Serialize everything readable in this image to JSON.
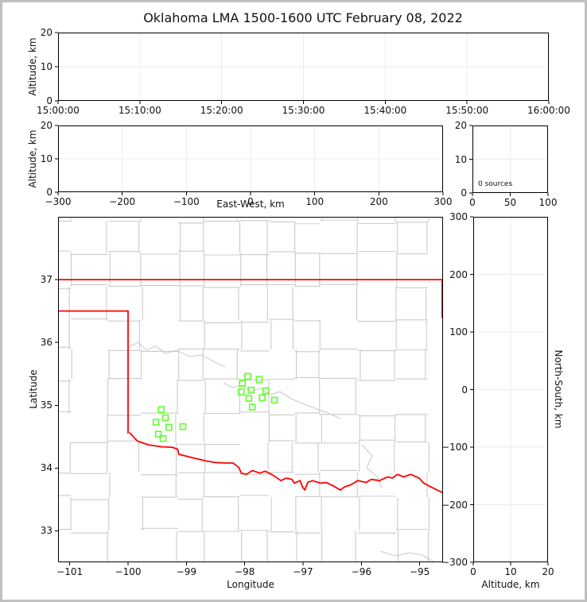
{
  "figure": {
    "title": "Oklahoma LMA 1500-1600 UTC February 08, 2022",
    "background": "#ffffff",
    "border_color": "#c0c0c0"
  },
  "colors": {
    "spine": "#000000",
    "grid": "#ececec",
    "county_line": "#cbcbcb",
    "state_border": "#ff0000",
    "station_marker": "#66ff33",
    "text": "#111111"
  },
  "panels": {
    "time_height": {
      "ylabel": "Altitude, km",
      "xtick_labels": [
        "15:00:00",
        "15:10:00",
        "15:20:00",
        "15:30:00",
        "15:40:00",
        "15:50:00",
        "16:00:00"
      ],
      "ytick_labels": [
        "0",
        "10",
        "20"
      ]
    },
    "eastwest_height": {
      "xlabel": "East-West, km",
      "ylabel": "Altitude, km",
      "xtick_labels": [
        "−300",
        "−200",
        "−100",
        "0",
        "100",
        "200",
        "300"
      ],
      "ytick_labels": [
        "0",
        "10",
        "20"
      ]
    },
    "source_histogram": {
      "annotation": "0 sources",
      "xtick_labels": [
        "0",
        "50",
        "100"
      ],
      "ytick_labels": [
        "0",
        "10",
        "20"
      ]
    },
    "plan_view": {
      "xlabel": "Longitude",
      "ylabel": "Latitude",
      "xtick_labels": [
        "−101",
        "−100",
        "−99",
        "−98",
        "−97",
        "−96",
        "−95"
      ],
      "ytick_labels": [
        "33",
        "34",
        "35",
        "36",
        "37"
      ]
    },
    "northsouth_height": {
      "xlabel": "Altitude, km",
      "ylabel": "North-South, km",
      "xtick_labels": [
        "0",
        "10",
        "20"
      ],
      "ytick_labels": [
        "−300",
        "−200",
        "−100",
        "0",
        "100",
        "200",
        "300"
      ]
    }
  },
  "chart_data": [
    {
      "id": "time_height",
      "type": "scatter",
      "ylabel": "Altitude, km",
      "xlim": [
        "15:00:00",
        "16:00:00"
      ],
      "ylim": [
        0,
        20
      ],
      "xticks": [
        "15:00:00",
        "15:10:00",
        "15:20:00",
        "15:30:00",
        "15:40:00",
        "15:50:00",
        "16:00:00"
      ],
      "yticks": [
        0,
        10,
        20
      ],
      "grid": true,
      "points": []
    },
    {
      "id": "eastwest_height",
      "type": "scatter",
      "xlabel": "East-West, km",
      "ylabel": "Altitude, km",
      "xlim": [
        -300,
        300
      ],
      "ylim": [
        0,
        20
      ],
      "xticks": [
        -300,
        -200,
        -100,
        0,
        100,
        200,
        300
      ],
      "yticks": [
        0,
        10,
        20
      ],
      "grid": true,
      "points": []
    },
    {
      "id": "source_histogram",
      "type": "line",
      "annotation": "0 sources",
      "xlim": [
        0,
        100
      ],
      "ylim": [
        0,
        20
      ],
      "xticks": [
        0,
        50,
        100
      ],
      "yticks": [
        0,
        10,
        20
      ],
      "grid": true,
      "points": []
    },
    {
      "id": "plan_view",
      "type": "scatter",
      "xlabel": "Longitude",
      "ylabel": "Latitude",
      "xlim": [
        -101.2,
        -94.6
      ],
      "ylim": [
        32.5,
        38.0
      ],
      "xticks": [
        -101,
        -100,
        -99,
        -98,
        -97,
        -96,
        -95
      ],
      "yticks": [
        33,
        34,
        35,
        36,
        37
      ],
      "grid": false,
      "marker_shape": "open-square",
      "marker_color": "#66ff33",
      "points": [
        [
          -97.95,
          35.46
        ],
        [
          -97.75,
          35.41
        ],
        [
          -98.04,
          35.35
        ],
        [
          -97.89,
          35.24
        ],
        [
          -98.06,
          35.21
        ],
        [
          -97.64,
          35.23
        ],
        [
          -97.7,
          35.12
        ],
        [
          -97.93,
          35.11
        ],
        [
          -97.49,
          35.08
        ],
        [
          -97.87,
          34.97
        ],
        [
          -99.43,
          34.93
        ],
        [
          -99.36,
          34.8
        ],
        [
          -99.52,
          34.73
        ],
        [
          -99.3,
          34.65
        ],
        [
          -99.06,
          34.66
        ],
        [
          -99.48,
          34.54
        ],
        [
          -99.4,
          34.47
        ]
      ]
    },
    {
      "id": "northsouth_height",
      "type": "scatter",
      "xlabel": "Altitude, km",
      "ylabel": "North-South, km",
      "xlim": [
        0,
        20
      ],
      "ylim": [
        -300,
        300
      ],
      "xticks": [
        0,
        10,
        20
      ],
      "yticks": [
        -300,
        -200,
        -100,
        0,
        100,
        200,
        300
      ],
      "grid": true,
      "points": []
    }
  ],
  "map_overlays": {
    "state_border": {
      "north": [
        [
          -101.2,
          37.0
        ],
        [
          -94.6,
          37.0
        ]
      ],
      "panhandle_south": [
        [
          -101.2,
          36.5
        ],
        [
          -100.0,
          36.5
        ]
      ],
      "west_meridian": [
        [
          -100.0,
          36.5
        ],
        [
          -100.0,
          34.56
        ]
      ],
      "east_border": [
        [
          -94.615,
          37.0
        ],
        [
          -94.615,
          36.4
        ]
      ],
      "red_river": [
        [
          -99.97,
          34.56
        ],
        [
          -99.84,
          34.43
        ],
        [
          -99.65,
          34.37
        ],
        [
          -99.43,
          34.34
        ],
        [
          -99.24,
          34.33
        ],
        [
          -99.15,
          34.3
        ],
        [
          -99.13,
          34.22
        ],
        [
          -98.96,
          34.18
        ],
        [
          -98.83,
          34.15
        ],
        [
          -98.65,
          34.11
        ],
        [
          -98.51,
          34.09
        ],
        [
          -98.34,
          34.08
        ],
        [
          -98.2,
          34.08
        ],
        [
          -98.1,
          34.01
        ],
        [
          -98.06,
          33.92
        ],
        [
          -97.97,
          33.9
        ],
        [
          -97.87,
          33.96
        ],
        [
          -97.74,
          33.92
        ],
        [
          -97.65,
          33.95
        ],
        [
          -97.52,
          33.89
        ],
        [
          -97.38,
          33.8
        ],
        [
          -97.29,
          33.84
        ],
        [
          -97.19,
          33.82
        ],
        [
          -97.15,
          33.76
        ],
        [
          -97.05,
          33.8
        ],
        [
          -97.01,
          33.7
        ],
        [
          -96.97,
          33.65
        ],
        [
          -96.92,
          33.77
        ],
        [
          -96.84,
          33.8
        ],
        [
          -96.7,
          33.76
        ],
        [
          -96.6,
          33.77
        ],
        [
          -96.47,
          33.71
        ],
        [
          -96.36,
          33.65
        ],
        [
          -96.29,
          33.7
        ],
        [
          -96.19,
          33.73
        ],
        [
          -96.06,
          33.8
        ],
        [
          -95.92,
          33.77
        ],
        [
          -95.83,
          33.82
        ],
        [
          -95.69,
          33.8
        ],
        [
          -95.55,
          33.86
        ],
        [
          -95.47,
          33.84
        ],
        [
          -95.38,
          33.9
        ],
        [
          -95.28,
          33.86
        ],
        [
          -95.15,
          33.9
        ],
        [
          -95.01,
          33.84
        ],
        [
          -94.93,
          33.76
        ],
        [
          -94.83,
          33.71
        ],
        [
          -94.7,
          33.65
        ],
        [
          -94.61,
          33.61
        ]
      ]
    }
  }
}
